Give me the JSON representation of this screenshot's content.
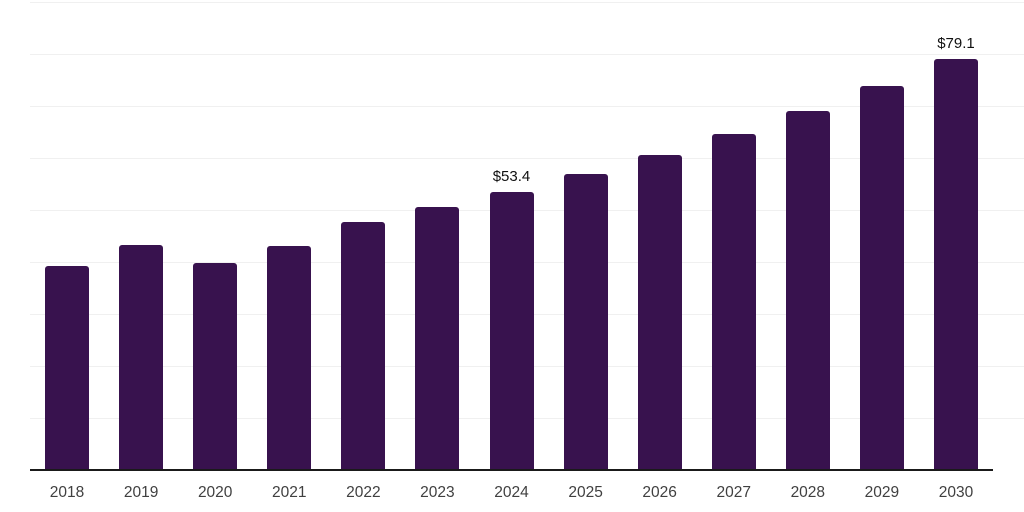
{
  "chart_data": {
    "type": "bar",
    "title": "",
    "xlabel": "",
    "ylabel": "",
    "categories": [
      "2018",
      "2019",
      "2020",
      "2021",
      "2022",
      "2023",
      "2024",
      "2025",
      "2026",
      "2027",
      "2028",
      "2029",
      "2030"
    ],
    "values": [
      39.2,
      43.2,
      39.8,
      43.0,
      47.6,
      50.5,
      53.4,
      57.0,
      60.6,
      64.7,
      69.0,
      73.8,
      79.1
    ],
    "data_labels": [
      "",
      "",
      "",
      "",
      "",
      "",
      "$53.4",
      "",
      "",
      "",
      "",
      "",
      "$79.1"
    ],
    "ylim": [
      0,
      90
    ],
    "gridline_step": 10,
    "grid": "horizontal",
    "legend": "none",
    "colors": {
      "bar": "#38124e",
      "gridline": "#f0f0f0",
      "axis_line": "#1a1a1a",
      "tick_label": "#404040",
      "data_label": "#111111",
      "background": "#ffffff"
    }
  }
}
